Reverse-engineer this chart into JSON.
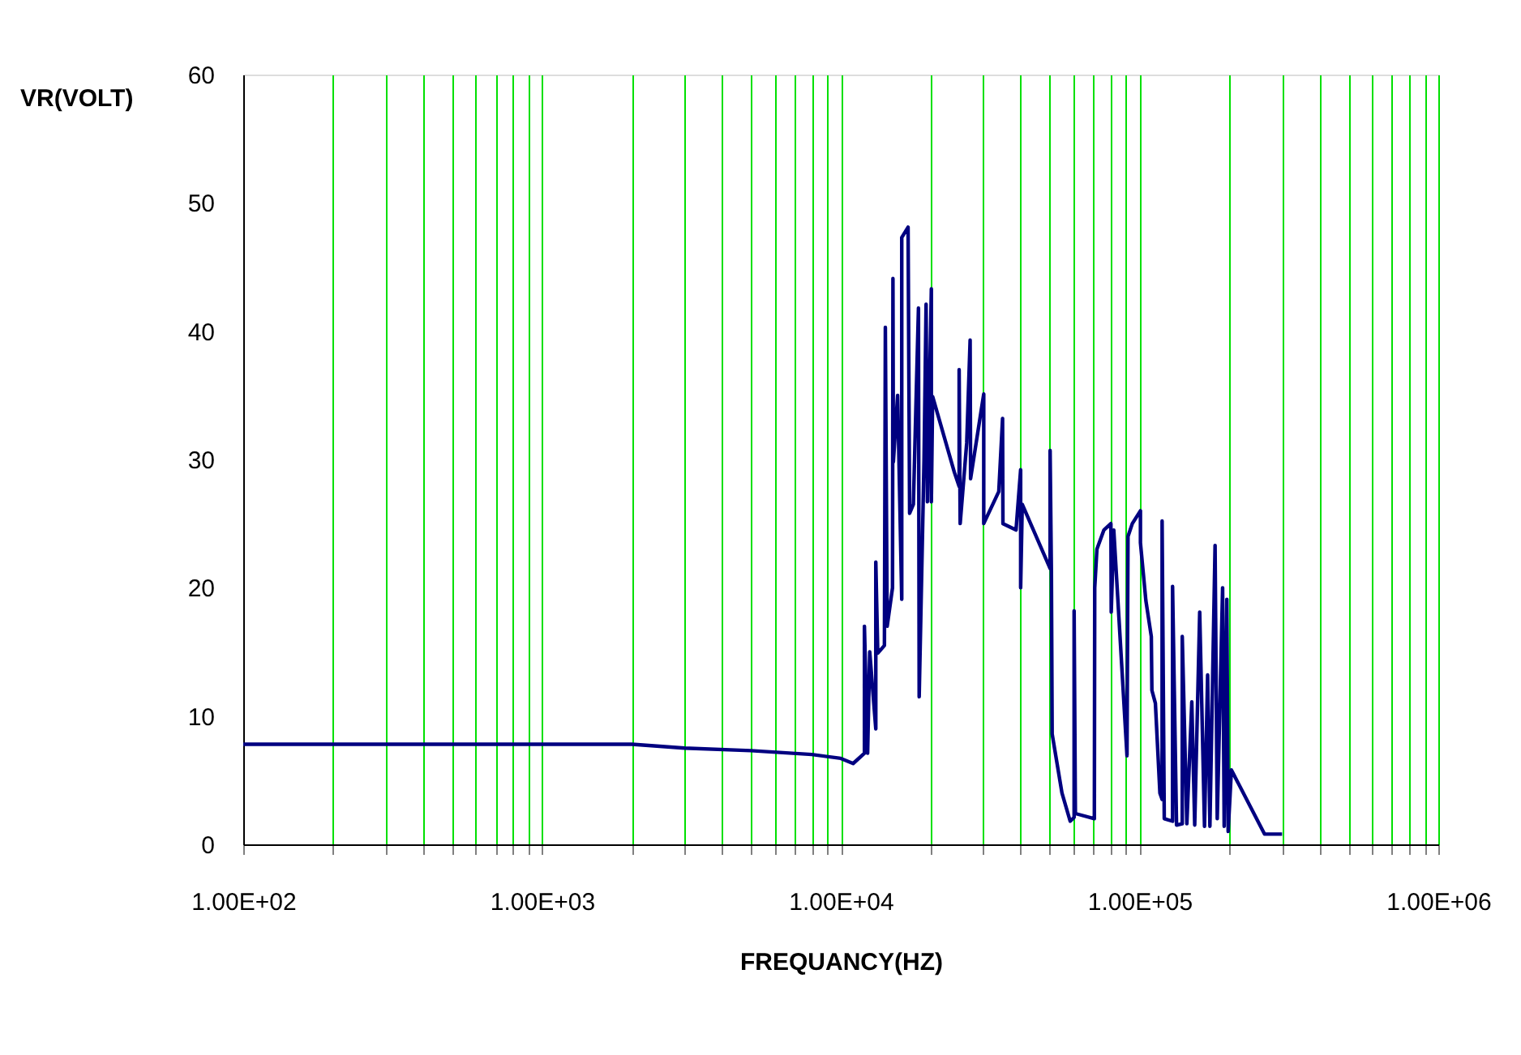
{
  "chart_data": {
    "type": "line",
    "xlabel": "FREQUANCY(HZ)",
    "ylabel": "VR(VOLT)",
    "log": "x",
    "grid": "x",
    "line_style": "solid",
    "xlim": [
      100,
      1000000
    ],
    "ylim": [
      0,
      60
    ],
    "yticks": [
      0,
      10,
      20,
      30,
      40,
      50,
      60
    ],
    "xticks": [
      {
        "value": 100,
        "label": "1.00E+02"
      },
      {
        "value": 200,
        "label": null
      },
      {
        "value": 300,
        "label": null
      },
      {
        "value": 400,
        "label": null
      },
      {
        "value": 500,
        "label": null
      },
      {
        "value": 600,
        "label": null
      },
      {
        "value": 700,
        "label": null
      },
      {
        "value": 800,
        "label": null
      },
      {
        "value": 900,
        "label": null
      },
      {
        "value": 1000,
        "label": "1.00E+03"
      },
      {
        "value": 2000,
        "label": null
      },
      {
        "value": 3000,
        "label": null
      },
      {
        "value": 4000,
        "label": null
      },
      {
        "value": 5000,
        "label": null
      },
      {
        "value": 6000,
        "label": null
      },
      {
        "value": 7000,
        "label": null
      },
      {
        "value": 8000,
        "label": null
      },
      {
        "value": 9000,
        "label": null
      },
      {
        "value": 10000,
        "label": "1.00E+04"
      },
      {
        "value": 20000,
        "label": null
      },
      {
        "value": 30000,
        "label": null
      },
      {
        "value": 40000,
        "label": null
      },
      {
        "value": 50000,
        "label": null
      },
      {
        "value": 60000,
        "label": null
      },
      {
        "value": 70000,
        "label": null
      },
      {
        "value": 80000,
        "label": null
      },
      {
        "value": 90000,
        "label": null
      },
      {
        "value": 100000,
        "label": "1.00E+05"
      },
      {
        "value": 200000,
        "label": null
      },
      {
        "value": 300000,
        "label": null
      },
      {
        "value": 400000,
        "label": null
      },
      {
        "value": 500000,
        "label": null
      },
      {
        "value": 600000,
        "label": null
      },
      {
        "value": 700000,
        "label": null
      },
      {
        "value": 800000,
        "label": null
      },
      {
        "value": 900000,
        "label": null
      },
      {
        "value": 1000000,
        "label": "1.00E+06"
      }
    ],
    "series": [
      {
        "color": "#000080",
        "x": [
          100,
          2000,
          3000,
          5000,
          8000,
          10000,
          11000,
          12000,
          12000,
          12300,
          12500,
          13100,
          13100,
          13300,
          14000,
          14100,
          14300,
          14900,
          14950,
          15000,
          15500,
          16000,
          16000,
          16800,
          17000,
          17500,
          18200,
          18300,
          19000,
          19300,
          19500,
          20100,
          20100,
          20300,
          24000,
          24900,
          24900,
          25100,
          26400,
          27100,
          27200,
          30100,
          30100,
          33800,
          34800,
          34900,
          38600,
          40000,
          40000,
          40500,
          50200,
          50200,
          50700,
          51000,
          55000,
          58600,
          60400,
          60400,
          61000,
          70600,
          70800,
          72000,
          76000,
          80200,
          80400,
          82000,
          90800,
          91500,
          94600,
          100700,
          100700,
          105000,
          109500,
          110000,
          113000,
          117000,
          119000,
          119000,
          121000,
          129000,
          129000,
          133000,
          139000,
          139000,
          144000,
          149600,
          153000,
          159000,
          165000,
          169000,
          172000,
          179000,
          182000,
          189700,
          192000,
          196000,
          198000,
          203000,
          262000,
          300000
        ],
        "values": [
          7.8,
          7.8,
          7.5,
          7.3,
          7.0,
          6.7,
          6.3,
          7.1,
          17.0,
          7.1,
          15.0,
          9.0,
          22.0,
          14.9,
          15.5,
          40.3,
          17.0,
          20.0,
          44.1,
          29.8,
          35.0,
          19.1,
          47.3,
          48.1,
          25.8,
          26.5,
          41.8,
          11.5,
          30.0,
          42.1,
          26.7,
          43.3,
          26.7,
          34.9,
          29.0,
          27.9,
          37.0,
          25.0,
          31.3,
          39.3,
          28.5,
          35.1,
          25.0,
          27.5,
          33.2,
          25.0,
          24.5,
          29.2,
          20.0,
          26.5,
          21.5,
          30.7,
          21.2,
          8.6,
          4.0,
          1.8,
          2.1,
          18.2,
          2.4,
          2.0,
          20.0,
          23.0,
          24.5,
          25.0,
          18.1,
          24.5,
          6.9,
          24.0,
          25.0,
          26.0,
          23.5,
          19.0,
          16.2,
          12.0,
          11.0,
          4.0,
          3.5,
          25.2,
          2.0,
          1.8,
          20.1,
          1.5,
          1.6,
          16.2,
          1.6,
          11.1,
          1.5,
          18.1,
          1.4,
          13.2,
          1.4,
          23.3,
          2.0,
          20.0,
          1.4,
          19.1,
          1.0,
          5.8,
          0.8,
          0.8
        ]
      }
    ]
  }
}
